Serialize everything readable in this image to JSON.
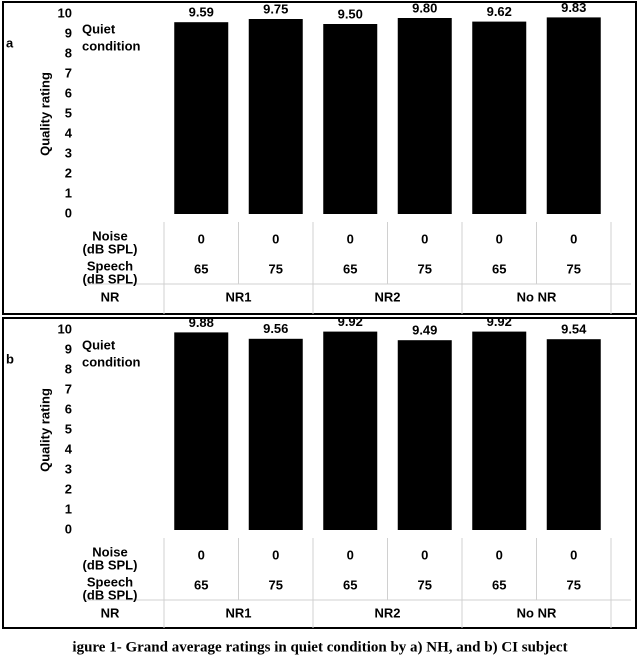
{
  "chart_data": [
    {
      "type": "bar",
      "panel_label": "a",
      "annotation": [
        "Quiet",
        "condition"
      ],
      "y_label": "Quality rating",
      "values": [
        9.59,
        9.75,
        9.5,
        9.8,
        9.62,
        9.83
      ],
      "value_labels": [
        "9.59",
        "9.75",
        "9.50",
        "9.80",
        "9.62",
        "9.83"
      ],
      "color": "#000000",
      "ylim": [
        0,
        10
      ],
      "yticks": [
        0,
        1,
        2,
        3,
        4,
        5,
        6,
        7,
        8,
        9,
        10
      ],
      "table": {
        "rows": [
          {
            "label": "Noise",
            "unit": "(dB SPL)",
            "values": [
              0,
              0,
              0,
              0,
              0,
              0
            ]
          },
          {
            "label": "Speech",
            "unit": "(dB SPL)",
            "values": [
              65,
              75,
              65,
              75,
              65,
              75
            ]
          }
        ],
        "group_label": "NR",
        "groups": [
          "NR1",
          "NR2",
          "No NR"
        ]
      }
    },
    {
      "type": "bar",
      "panel_label": "b",
      "annotation": [
        "Quiet",
        "condition"
      ],
      "y_label": "Quality rating",
      "values": [
        9.88,
        9.56,
        9.92,
        9.49,
        9.92,
        9.54
      ],
      "value_labels": [
        "9.88",
        "9.56",
        "9.92",
        "9.49",
        "9.92",
        "9.54"
      ],
      "color": "#000000",
      "ylim": [
        0,
        10
      ],
      "yticks": [
        0,
        1,
        2,
        3,
        4,
        5,
        6,
        7,
        8,
        9,
        10
      ],
      "table": {
        "rows": [
          {
            "label": "Noise",
            "unit": "(dB SPL)",
            "values": [
              0,
              0,
              0,
              0,
              0,
              0
            ]
          },
          {
            "label": "Speech",
            "unit": "(dB SPL)",
            "values": [
              65,
              75,
              65,
              75,
              65,
              75
            ]
          }
        ],
        "group_label": "NR",
        "groups": [
          "NR1",
          "NR2",
          "No NR"
        ]
      }
    }
  ],
  "caption": "igure 1- Grand average ratings in quiet condition by a) NH, and b) CI subject"
}
